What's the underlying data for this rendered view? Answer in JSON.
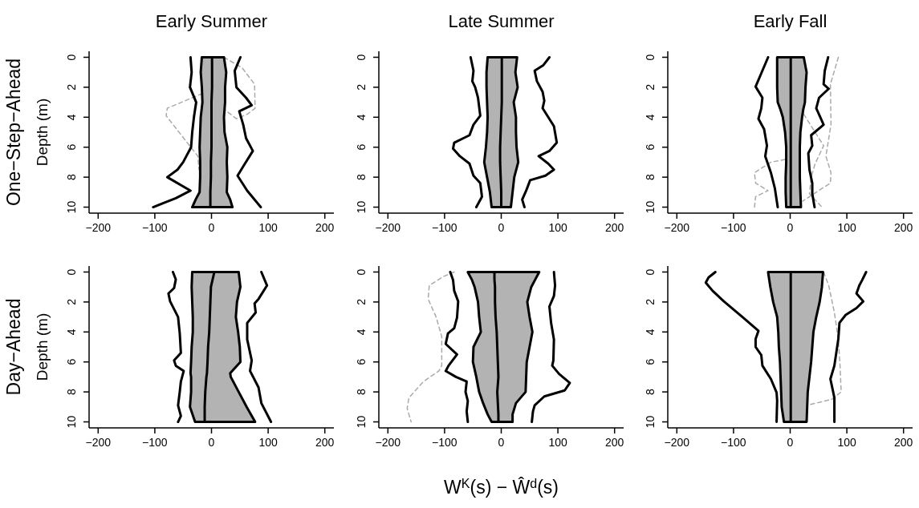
{
  "chart_data": [
    {
      "type": "line",
      "orientation": "horizontal",
      "title": "Early Summer",
      "ylabel": "Depth (m)",
      "annotations": [
        "One−Step−Ahead"
      ],
      "xlim": [
        -216,
        216
      ],
      "xticks": [
        -200,
        -100,
        0,
        100,
        200
      ],
      "ylim": [
        10.4,
        -0.4
      ],
      "yticks": [
        0,
        2,
        4,
        6,
        8,
        10
      ],
      "series": [
        {
          "color": "#aaaaaa",
          "line_style": "dashed",
          "x": [
            0,
            0.7,
            1.8,
            3.4,
            3.8,
            4.1,
            2.4,
            3.4,
            3.9,
            5.4,
            6.6,
            7.5
          ],
          "values": [
            22,
            54,
            76,
            77,
            63,
            44,
            -15,
            -78,
            -80,
            -49,
            -24,
            -22
          ]
        },
        {
          "color": "#000000",
          "x": [
            0,
            1,
            2,
            3,
            4,
            5,
            6,
            7,
            8,
            9,
            9.5,
            10
          ],
          "values": [
            1,
            1,
            1,
            0,
            0,
            0,
            0,
            -1,
            -1,
            -2,
            -2,
            -2
          ],
          "lower": [
            -17,
            -19,
            -17,
            -16,
            -19,
            -20,
            -21,
            -20,
            -20,
            -21,
            -28,
            -34
          ],
          "upper": [
            22,
            26,
            24,
            24,
            22,
            23,
            28,
            27,
            28,
            27,
            33,
            37
          ]
        },
        {
          "color": "#000000",
          "x": [
            0,
            1,
            2,
            3,
            4,
            5,
            6,
            7,
            7.5,
            8,
            8.9,
            9.4,
            10
          ],
          "values": [
            -37,
            -35,
            -38,
            -27,
            -31,
            -34,
            -36,
            -50,
            -60,
            -78,
            -37,
            -63,
            -103
          ]
        },
        {
          "color": "#000000",
          "x": [
            0,
            0.9,
            2,
            2.7,
            3.2,
            3.6,
            4.5,
            5.4,
            6.25,
            7.1,
            7.9,
            8.9,
            10
          ],
          "values": [
            51,
            41,
            44,
            61,
            71,
            49,
            56,
            61,
            73,
            59,
            46,
            63,
            87
          ]
        }
      ]
    },
    {
      "type": "line",
      "orientation": "horizontal",
      "title": "Late Summer",
      "xlim": [
        -216,
        216
      ],
      "xticks": [
        -200,
        -100,
        0,
        100,
        200
      ],
      "ylim": [
        10.4,
        -0.4
      ],
      "yticks": [
        0,
        2,
        4,
        6,
        8,
        10
      ],
      "series": [
        {
          "color": "#000000",
          "x": [
            0,
            1,
            2,
            3,
            4,
            5,
            6,
            7,
            8,
            9,
            10
          ],
          "values": [
            1,
            1,
            1,
            1,
            0,
            -1,
            -2,
            -2,
            -1,
            0,
            0
          ],
          "lower": [
            -24,
            -26,
            -26,
            -25,
            -24,
            -25,
            -27,
            -30,
            -25,
            -20,
            -17
          ],
          "upper": [
            28,
            25,
            29,
            22,
            26,
            26,
            27,
            30,
            23,
            20,
            17
          ]
        },
        {
          "color": "#000000",
          "x": [
            0,
            0.9,
            1.6,
            2,
            2.7,
            3.9,
            4.5,
            5.2,
            5.7,
            6.1,
            6.6,
            7.1,
            7.9,
            8.4,
            9.3,
            10
          ],
          "values": [
            -54,
            -49,
            -51,
            -46,
            -41,
            -37,
            -49,
            -56,
            -83,
            -85,
            -73,
            -56,
            -49,
            -37,
            -34,
            -44
          ]
        },
        {
          "color": "#000000",
          "x": [
            0,
            0.54,
            0.9,
            1.6,
            2.3,
            2.9,
            3.4,
            4.6,
            5.7,
            6.25,
            6.6,
            7.1,
            7.5,
            7.9,
            8.2,
            8.9,
            9.5,
            10
          ],
          "values": [
            85,
            74,
            59,
            63,
            73,
            76,
            73,
            93,
            98,
            85,
            66,
            83,
            93,
            78,
            51,
            44,
            37,
            41
          ]
        }
      ]
    },
    {
      "type": "line",
      "orientation": "horizontal",
      "title": "Early Fall",
      "xlim": [
        -216,
        216
      ],
      "xticks": [
        -200,
        -100,
        0,
        100,
        200
      ],
      "ylim": [
        10.4,
        -0.4
      ],
      "yticks": [
        0,
        2,
        4,
        6,
        8,
        10
      ],
      "series": [
        {
          "color": "#aaaaaa",
          "line_style": "dashed",
          "x": [
            0,
            1.8,
            4.5,
            6.6,
            7.7,
            8.4,
            8.8,
            9.6
          ],
          "values": [
            85,
            71,
            72,
            63,
            72,
            71,
            54,
            22
          ]
        },
        {
          "color": "#aaaaaa",
          "line_style": "dashed",
          "x": [
            10,
            9.3,
            8.9,
            8.4,
            7.7,
            7,
            6.8
          ],
          "values": [
            -63,
            -61,
            -39,
            -61,
            -63,
            -34,
            -7
          ]
        },
        {
          "color": "#aaaaaa",
          "line_style": "dashed",
          "x": [
            3.8,
            5,
            5.9,
            7.1,
            8,
            9.1,
            10
          ],
          "values": [
            24,
            44,
            59,
            44,
            37,
            34,
            56
          ]
        },
        {
          "color": "#000000",
          "x": [
            0,
            1,
            2,
            3,
            3.5,
            4,
            5,
            6,
            7,
            8,
            9,
            10
          ],
          "values": [
            1,
            1,
            1,
            1,
            1,
            1,
            1,
            1,
            1,
            1,
            1,
            1
          ],
          "lower": [
            -23,
            -23,
            -23,
            -22,
            -17,
            -13,
            -9,
            -7,
            -7,
            -8,
            -8,
            -7
          ],
          "upper": [
            24,
            29,
            27,
            26,
            23,
            21,
            18,
            17,
            17,
            17,
            18,
            19
          ]
        },
        {
          "color": "#000000",
          "x": [
            0,
            1.07,
            1.96,
            2.7,
            3.4,
            4.1,
            4.8,
            5.9,
            6.6,
            7.7,
            8.75,
            9.5,
            10
          ],
          "values": [
            -39,
            -51,
            -61,
            -49,
            -51,
            -56,
            -46,
            -41,
            -44,
            -34,
            -27,
            -24,
            -22
          ]
        },
        {
          "color": "#000000",
          "x": [
            0,
            0.9,
            1.8,
            2.1,
            2.7,
            3.4,
            4.5,
            5.2,
            5.9,
            6.4,
            7.5,
            8.4,
            9.1,
            10
          ],
          "values": [
            67,
            61,
            59,
            68,
            51,
            46,
            59,
            37,
            39,
            32,
            34,
            39,
            39,
            43
          ]
        }
      ]
    },
    {
      "type": "line",
      "orientation": "horizontal",
      "ylabel": "Depth (m)",
      "annotations": [
        "Day−Ahead"
      ],
      "xlim": [
        -216,
        216
      ],
      "xticks": [
        -200,
        -100,
        0,
        100,
        200
      ],
      "ylim": [
        10.4,
        -0.4
      ],
      "yticks": [
        0,
        2,
        4,
        6,
        8,
        10
      ],
      "series": [
        {
          "color": "#000000",
          "x": [
            0,
            1,
            2,
            3,
            4,
            5,
            6,
            6.75,
            7,
            8,
            9,
            10
          ],
          "values": [
            5,
            -1,
            -2,
            -3,
            -4,
            -6,
            -7,
            -8,
            -9,
            -11,
            -12,
            -12
          ],
          "lower": [
            -34,
            -35,
            -34,
            -33,
            -33,
            -35,
            -36,
            -37,
            -36,
            -36,
            -38,
            -29
          ],
          "upper": [
            48,
            51,
            45,
            43,
            47,
            50,
            51,
            33,
            34,
            48,
            62,
            77
          ]
        },
        {
          "color": "#000000",
          "x": [
            0,
            0.5,
            1.07,
            1.43,
            1.96,
            3,
            4.1,
            5.4,
            5.9,
            6.25,
            6.6,
            7.3,
            8,
            8.9,
            9.6,
            10
          ],
          "values": [
            -68,
            -63,
            -66,
            -76,
            -73,
            -59,
            -56,
            -54,
            -66,
            -63,
            -49,
            -54,
            -56,
            -59,
            -54,
            -59
          ]
        },
        {
          "color": "#000000",
          "x": [
            0,
            0.9,
            1.8,
            2.1,
            2.7,
            3.4,
            4.5,
            5.9,
            6.6,
            7.7,
            8.75,
            10
          ],
          "values": [
            88,
            98,
            83,
            76,
            78,
            63,
            63,
            71,
            68,
            83,
            88,
            105
          ]
        }
      ]
    },
    {
      "type": "line",
      "orientation": "horizontal",
      "xlabel": "W$^{K}$(s) − Ŵ$^{d}$(s)",
      "xlim": [
        -216,
        216
      ],
      "xticks": [
        -200,
        -100,
        0,
        100,
        200
      ],
      "ylim": [
        10.4,
        -0.4
      ],
      "yticks": [
        0,
        2,
        4,
        6,
        8,
        10
      ],
      "series": [
        {
          "color": "#aaaaaa",
          "line_style": "dashed",
          "x": [
            0,
            0.3,
            0.9,
            1.8,
            3,
            4.3,
            6.25,
            6.6,
            7.3,
            8.4,
            9.1,
            10
          ],
          "values": [
            -83,
            -102,
            -127,
            -129,
            -115,
            -105,
            -105,
            -110,
            -137,
            -163,
            -166,
            -159
          ]
        },
        {
          "color": "#000000",
          "x": [
            0,
            0.5,
            1,
            2,
            3,
            4,
            5,
            6,
            7,
            8,
            8.75,
            9.5,
            10
          ],
          "values": [
            -12,
            -12,
            -11,
            -11,
            -10,
            -8,
            -7,
            -6,
            -5,
            -7,
            -6,
            -5,
            -5
          ],
          "lower": [
            -59,
            -52,
            -47,
            -41,
            -39,
            -36,
            -49,
            -50,
            -44,
            -39,
            -32,
            -24,
            -17
          ],
          "upper": [
            67,
            60,
            53,
            46,
            50,
            55,
            50,
            45,
            44,
            43,
            26,
            20,
            20
          ]
        },
        {
          "color": "#000000",
          "x": [
            0,
            0.54,
            1.25,
            1.96,
            3.04,
            3.75,
            4.1,
            4.8,
            5.5,
            6.25,
            6.6,
            7,
            7.3,
            8,
            8.6,
            9.3,
            10
          ],
          "values": [
            -90,
            -85,
            -83,
            -76,
            -78,
            -83,
            -94,
            -98,
            -78,
            -93,
            -98,
            -80,
            -61,
            -63,
            -59,
            -61,
            -59
          ]
        },
        {
          "color": "#000000",
          "x": [
            0,
            0.9,
            1.6,
            2.3,
            3.4,
            4.5,
            5.9,
            6.25,
            6.8,
            7.4,
            7.9,
            8.3,
            8.9,
            9.3,
            10
          ],
          "values": [
            93,
            95,
            93,
            85,
            88,
            93,
            92,
            90,
            102,
            121,
            112,
            76,
            59,
            56,
            54
          ]
        }
      ]
    },
    {
      "type": "line",
      "orientation": "horizontal",
      "xlim": [
        -216,
        216
      ],
      "xticks": [
        -200,
        -100,
        0,
        100,
        200
      ],
      "ylim": [
        10.4,
        -0.4
      ],
      "yticks": [
        0,
        2,
        4,
        6,
        8,
        10
      ],
      "series": [
        {
          "color": "#aaaaaa",
          "line_style": "dashed",
          "x": [
            0,
            0.9,
            2.7,
            4.5,
            6.25,
            8,
            8.5,
            8.9
          ],
          "values": [
            59,
            68,
            78,
            85,
            88,
            90,
            73,
            29
          ]
        },
        {
          "color": "#000000",
          "x": [
            0,
            1,
            2,
            3,
            4,
            5,
            6,
            7,
            8,
            9,
            10
          ],
          "values": [
            1,
            1,
            1,
            1,
            1,
            1,
            1,
            1,
            1,
            1,
            1
          ],
          "lower": [
            -39,
            -35,
            -30,
            -23,
            -21,
            -20,
            -18,
            -17,
            -16,
            -15,
            -11
          ],
          "upper": [
            58,
            56,
            52,
            46,
            41,
            39,
            37,
            34,
            31,
            30,
            29
          ]
        },
        {
          "color": "#000000",
          "x": [
            0,
            0.36,
            0.71,
            1.25,
            1.96,
            3.04,
            3.93,
            4.46,
            5,
            5.54,
            6.25,
            7.14,
            8.04,
            8.57,
            10
          ],
          "values": [
            -132,
            -144,
            -149,
            -137,
            -117,
            -83,
            -56,
            -61,
            -61,
            -51,
            -49,
            -34,
            -24,
            -23,
            -24
          ]
        },
        {
          "color": "#000000",
          "x": [
            0,
            0.54,
            0.9,
            1.43,
            1.96,
            2.41,
            2.86,
            3.39,
            4.46,
            6.25,
            7.14,
            8.39,
            10
          ],
          "values": [
            134,
            127,
            122,
            117,
            129,
            117,
            98,
            87,
            85,
            78,
            71,
            78,
            78
          ]
        }
      ]
    }
  ]
}
